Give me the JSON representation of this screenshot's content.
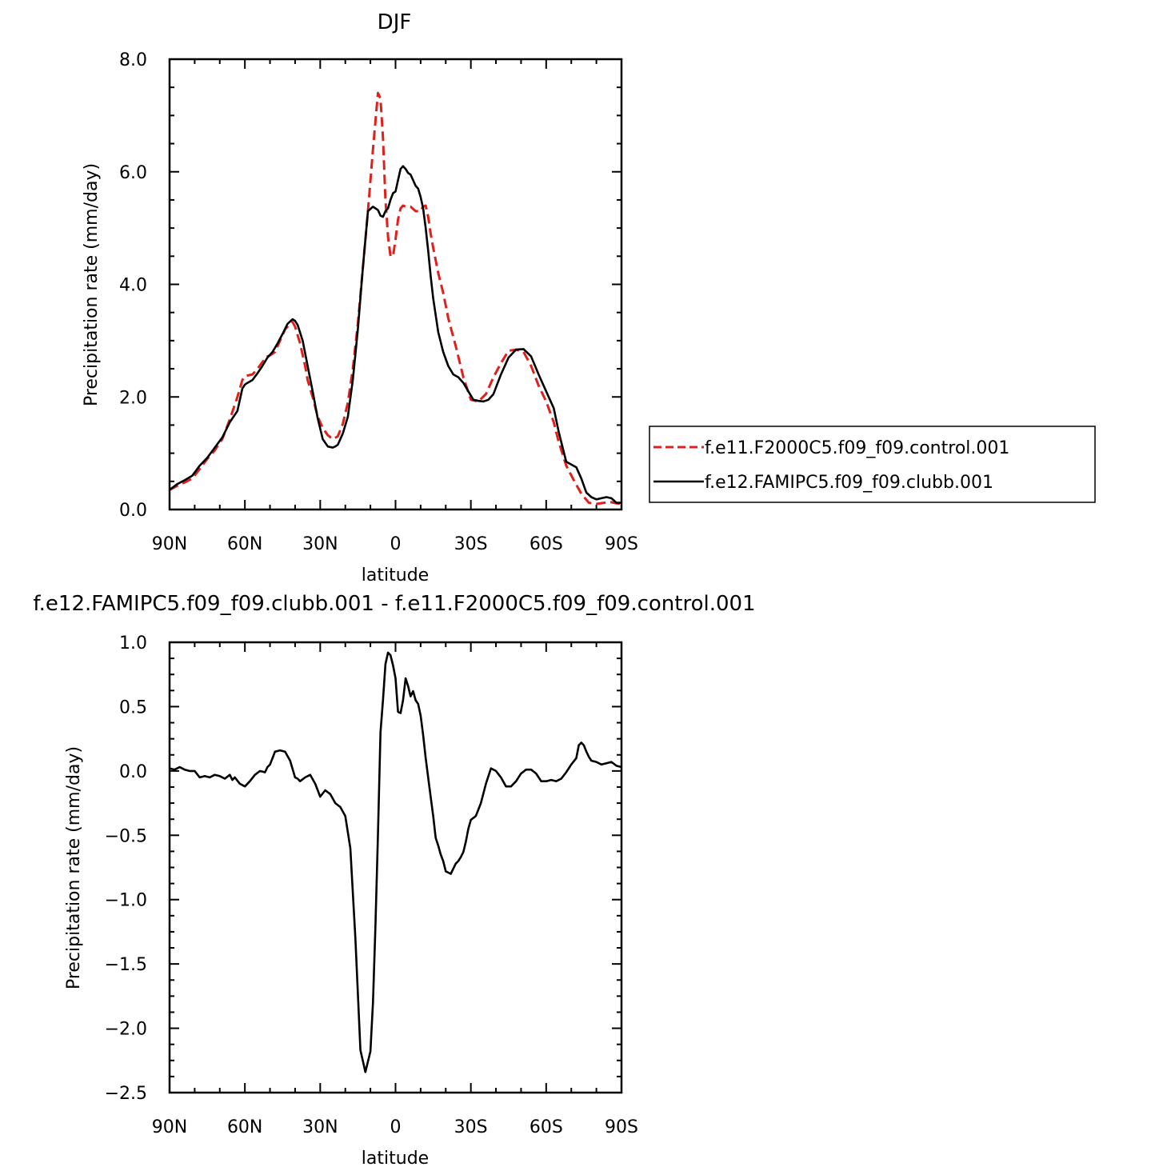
{
  "chart_data": [
    {
      "type": "line",
      "title": "DJF",
      "xlabel": "latitude",
      "ylabel": "Precipitation rate (mm/day)",
      "xlim": [
        90,
        -90
      ],
      "ylim": [
        0,
        8
      ],
      "x_ticks": [
        90,
        60,
        30,
        0,
        -30,
        -60,
        -90
      ],
      "x_tick_labels": [
        "90N",
        "60N",
        "30N",
        "0",
        "30S",
        "60S",
        "90S"
      ],
      "y_ticks": [
        0,
        2,
        4,
        6,
        8
      ],
      "y_tick_labels": [
        "0.0",
        "2.0",
        "4.0",
        "6.0",
        "8.0"
      ],
      "legend": {
        "position": "right",
        "entries": [
          "f.e11.F2000C5.f09_f09.control.001",
          "f.e12.FAMIPC5.f09_f09.clubb.001"
        ]
      },
      "series": [
        {
          "name": "f.e11.F2000C5.f09_f09.control.001",
          "color": "#e0201b",
          "dash": "dashed",
          "x": [
            90,
            87,
            84,
            81,
            78,
            75,
            72,
            69,
            66,
            63,
            61,
            60,
            59,
            57,
            55,
            53,
            51,
            50,
            48,
            46,
            44,
            42,
            41,
            40,
            38,
            36,
            35,
            33,
            31,
            29,
            27,
            25,
            23,
            21,
            19,
            17,
            15,
            13,
            11,
            9,
            7,
            6,
            5,
            4,
            3,
            2,
            1,
            0,
            -1,
            -2,
            -3,
            -4,
            -6,
            -8,
            -10,
            -11,
            -12,
            -13,
            -14,
            -15,
            -17,
            -19,
            -21,
            -24,
            -27,
            -30,
            -33,
            -36,
            -39,
            -42,
            -45,
            -48,
            -51,
            -54,
            -57,
            -60,
            -63,
            -65,
            -68,
            -71,
            -74,
            -77,
            -80,
            -83,
            -86,
            -88,
            -90
          ],
          "y": [
            0.35,
            0.42,
            0.48,
            0.55,
            0.72,
            0.9,
            1.05,
            1.25,
            1.6,
            2.0,
            2.3,
            2.37,
            2.38,
            2.4,
            2.5,
            2.62,
            2.72,
            2.74,
            2.8,
            3.0,
            3.2,
            3.3,
            3.33,
            3.25,
            2.95,
            2.55,
            2.3,
            2.0,
            1.65,
            1.45,
            1.32,
            1.25,
            1.3,
            1.52,
            1.9,
            2.5,
            3.3,
            4.3,
            5.3,
            6.4,
            7.4,
            7.3,
            6.6,
            5.5,
            4.85,
            4.5,
            4.5,
            4.8,
            5.15,
            5.35,
            5.4,
            5.38,
            5.38,
            5.3,
            5.3,
            5.38,
            5.4,
            5.2,
            4.9,
            4.65,
            4.2,
            3.85,
            3.4,
            2.9,
            2.35,
            1.95,
            1.92,
            2.05,
            2.35,
            2.6,
            2.82,
            2.84,
            2.8,
            2.55,
            2.2,
            1.92,
            1.55,
            1.2,
            0.78,
            0.52,
            0.28,
            0.12,
            0.1,
            0.12,
            0.13,
            0.11,
            0.1
          ]
        },
        {
          "name": "f.e12.FAMIPC5.f09_f09.clubb.001",
          "color": "#000000",
          "dash": "solid",
          "x": [
            90,
            87,
            84,
            81,
            78,
            75,
            72,
            69,
            66,
            63,
            61,
            60,
            59,
            57,
            55,
            53,
            51,
            49,
            47,
            45,
            43,
            41,
            40,
            39,
            37,
            35,
            33,
            31,
            29,
            27,
            25,
            24,
            23,
            21,
            19,
            17,
            15,
            13,
            11,
            9,
            7,
            6,
            5,
            4,
            3,
            2,
            1,
            0,
            -1,
            -2,
            -3,
            -4,
            -5,
            -6,
            -7,
            -8,
            -9,
            -10,
            -11,
            -12,
            -13,
            -14,
            -15,
            -17,
            -19,
            -21,
            -23,
            -25,
            -27,
            -29,
            -31,
            -33,
            -35,
            -37,
            -39,
            -42,
            -45,
            -48,
            -51,
            -54,
            -57,
            -60,
            -63,
            -65,
            -68,
            -70,
            -72,
            -74,
            -76,
            -78,
            -80,
            -82,
            -84,
            -86,
            -88,
            -90
          ],
          "y": [
            0.35,
            0.45,
            0.52,
            0.6,
            0.78,
            0.92,
            1.1,
            1.28,
            1.55,
            1.75,
            2.15,
            2.22,
            2.25,
            2.3,
            2.42,
            2.55,
            2.7,
            2.8,
            2.95,
            3.12,
            3.3,
            3.38,
            3.35,
            3.28,
            3.0,
            2.55,
            2.1,
            1.62,
            1.25,
            1.12,
            1.1,
            1.12,
            1.15,
            1.35,
            1.65,
            2.3,
            3.2,
            4.3,
            5.3,
            5.38,
            5.32,
            5.22,
            5.2,
            5.3,
            5.35,
            5.5,
            5.62,
            5.65,
            5.85,
            6.05,
            6.1,
            6.05,
            5.98,
            5.95,
            5.85,
            5.75,
            5.7,
            5.55,
            5.35,
            5.0,
            4.6,
            4.15,
            3.75,
            3.15,
            2.8,
            2.55,
            2.4,
            2.35,
            2.25,
            2.1,
            1.95,
            1.93,
            1.92,
            1.95,
            2.05,
            2.4,
            2.7,
            2.84,
            2.85,
            2.72,
            2.4,
            2.1,
            1.8,
            1.38,
            0.85,
            0.8,
            0.75,
            0.55,
            0.3,
            0.22,
            0.18,
            0.2,
            0.22,
            0.2,
            0.12,
            0.12
          ]
        }
      ]
    },
    {
      "type": "line",
      "title": "f.e12.FAMIPC5.f09_f09.clubb.001 - f.e11.F2000C5.f09_f09.control.001",
      "xlabel": "latitude",
      "ylabel": "Precipitation rate (mm/day)",
      "xlim": [
        90,
        -90
      ],
      "ylim": [
        -2.5,
        1.0
      ],
      "x_ticks": [
        90,
        60,
        30,
        0,
        -30,
        -60,
        -90
      ],
      "x_tick_labels": [
        "90N",
        "60N",
        "30N",
        "0",
        "30S",
        "60S",
        "90S"
      ],
      "y_ticks": [
        -2.5,
        -2.0,
        -1.5,
        -1.0,
        -0.5,
        0.0,
        0.5,
        1.0
      ],
      "y_tick_labels": [
        "−2.5",
        "−2.0",
        "−1.5",
        "−1.0",
        "−0.5",
        "0.0",
        "0.5",
        "1.0"
      ],
      "series": [
        {
          "color": "#000000",
          "dash": "solid",
          "x": [
            90,
            88,
            86,
            84,
            82,
            80,
            78,
            76,
            74,
            72,
            70,
            68,
            66,
            65,
            64,
            62,
            60,
            58,
            56,
            54,
            52,
            51,
            50,
            49,
            48,
            46,
            44,
            42,
            40,
            39,
            38,
            36,
            34,
            32,
            30,
            28,
            26,
            24,
            22,
            20,
            18,
            16,
            14,
            12,
            10,
            9,
            8,
            7,
            6,
            5,
            4,
            3,
            2,
            1,
            0,
            -1,
            -2,
            -3,
            -4,
            -5,
            -6,
            -7,
            -8,
            -9,
            -10,
            -11,
            -12,
            -13,
            -14,
            -15,
            -16,
            -17,
            -18,
            -19,
            -20,
            -21,
            -22,
            -23,
            -24,
            -25,
            -26,
            -27,
            -28,
            -29,
            -30,
            -32,
            -34,
            -36,
            -38,
            -40,
            -42,
            -44,
            -46,
            -48,
            -50,
            -52,
            -54,
            -56,
            -58,
            -60,
            -62,
            -64,
            -66,
            -68,
            -70,
            -72,
            -73,
            -74,
            -75,
            -76,
            -77,
            -78,
            -80,
            -82,
            -84,
            -86,
            -88,
            -90
          ],
          "y": [
            0.02,
            0.01,
            0.03,
            0.01,
            0.0,
            0.0,
            -0.05,
            -0.04,
            -0.05,
            -0.03,
            -0.04,
            -0.06,
            -0.03,
            -0.07,
            -0.05,
            -0.1,
            -0.12,
            -0.08,
            -0.03,
            0.0,
            -0.01,
            0.03,
            0.05,
            0.1,
            0.15,
            0.16,
            0.15,
            0.08,
            -0.05,
            -0.06,
            -0.08,
            -0.05,
            -0.03,
            -0.1,
            -0.2,
            -0.15,
            -0.18,
            -0.25,
            -0.28,
            -0.35,
            -0.6,
            -1.3,
            -2.17,
            -2.34,
            -2.18,
            -1.8,
            -1.2,
            -0.5,
            0.3,
            0.55,
            0.83,
            0.92,
            0.9,
            0.82,
            0.72,
            0.46,
            0.45,
            0.55,
            0.72,
            0.66,
            0.58,
            0.62,
            0.55,
            0.52,
            0.43,
            0.28,
            0.1,
            -0.05,
            -0.2,
            -0.35,
            -0.52,
            -0.58,
            -0.65,
            -0.7,
            -0.78,
            -0.79,
            -0.8,
            -0.76,
            -0.72,
            -0.7,
            -0.67,
            -0.63,
            -0.55,
            -0.45,
            -0.38,
            -0.35,
            -0.25,
            -0.1,
            0.02,
            0.0,
            -0.05,
            -0.12,
            -0.12,
            -0.08,
            -0.02,
            0.01,
            0.01,
            -0.02,
            -0.08,
            -0.08,
            -0.07,
            -0.08,
            -0.06,
            -0.01,
            0.05,
            0.1,
            0.2,
            0.22,
            0.2,
            0.15,
            0.11,
            0.08,
            0.07,
            0.05,
            0.06,
            0.07,
            0.04,
            0.03
          ]
        }
      ]
    }
  ]
}
